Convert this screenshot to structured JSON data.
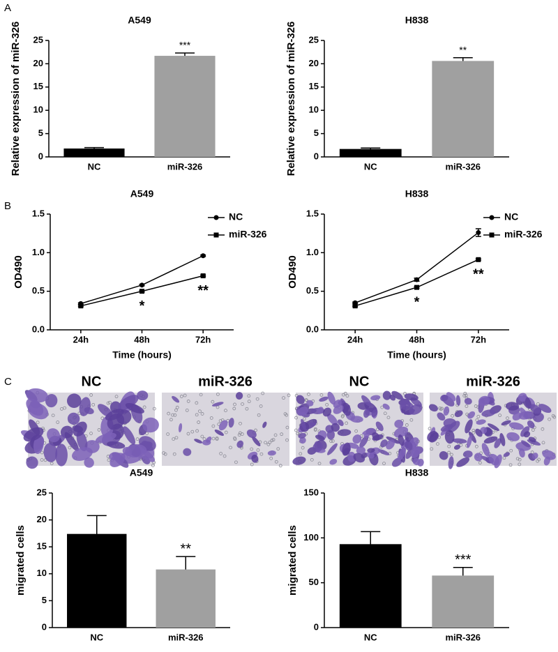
{
  "panel_labels": [
    "A",
    "B",
    "C"
  ],
  "image_titles": [
    "NC",
    "miR-326",
    "NC",
    "miR-326"
  ],
  "chart_data": [
    {
      "type": "bar",
      "title": "A549",
      "ylabel": "Relative expression of miR-326",
      "categories": [
        "NC",
        "miR-326"
      ],
      "values": [
        1.8,
        21.7
      ],
      "errors": [
        0.2,
        0.6
      ],
      "colors": [
        "#000000",
        "#a0a0a0"
      ],
      "ylim": [
        0,
        25
      ],
      "yticks": [
        0,
        5,
        10,
        15,
        20,
        25
      ],
      "annotations": [
        "***"
      ]
    },
    {
      "type": "bar",
      "title": "H838",
      "ylabel": "Relative expression of miR-326",
      "categories": [
        "NC",
        "miR-326"
      ],
      "values": [
        1.7,
        20.6
      ],
      "errors": [
        0.2,
        0.7
      ],
      "colors": [
        "#000000",
        "#a0a0a0"
      ],
      "ylim": [
        0,
        25
      ],
      "yticks": [
        0,
        5,
        10,
        15,
        20,
        25
      ],
      "annotations": [
        "**"
      ]
    },
    {
      "type": "line",
      "title": "A549",
      "ylabel": "OD490",
      "xlabel": "Time (hours)",
      "categories": [
        "24h",
        "48h",
        "72h"
      ],
      "series": [
        {
          "name": "NC",
          "color": "#000000",
          "marker": "circle",
          "values": [
            0.34,
            0.58,
            0.96
          ],
          "errors": [
            0.01,
            0.01,
            0.01
          ]
        },
        {
          "name": "miR-326",
          "color": "#000000",
          "marker": "square",
          "values": [
            0.31,
            0.5,
            0.7
          ],
          "errors": [
            0.01,
            0.01,
            0.01
          ]
        }
      ],
      "ylim": [
        0,
        1.5
      ],
      "yticks": [
        {
          "value": 0,
          "label": "0.0"
        },
        0.5,
        {
          "value": 1,
          "label": "1.0"
        },
        1.5
      ],
      "annotations": [
        "*",
        "**"
      ],
      "legend": "upper right"
    },
    {
      "type": "line",
      "title": "H838",
      "ylabel": "OD490",
      "xlabel": "Time (hours)",
      "categories": [
        "24h",
        "48h",
        "72h"
      ],
      "series": [
        {
          "name": "NC",
          "color": "#000000",
          "marker": "circle",
          "values": [
            0.35,
            0.65,
            1.26
          ],
          "errors": [
            0.01,
            0.02,
            0.05
          ]
        },
        {
          "name": "miR-326",
          "color": "#000000",
          "marker": "square",
          "values": [
            0.31,
            0.55,
            0.91
          ],
          "errors": [
            0.01,
            0.01,
            0.01
          ]
        }
      ],
      "ylim": [
        0,
        1.5
      ],
      "yticks": [
        {
          "value": 0,
          "label": "0.0"
        },
        0.5,
        {
          "value": 1,
          "label": "1.0"
        },
        1.5
      ],
      "annotations": [
        "*",
        "**"
      ],
      "legend": "upper right"
    },
    {
      "type": "bar",
      "title": "A549",
      "ylabel": "migrated cells",
      "categories": [
        "NC",
        "miR-326"
      ],
      "values": [
        17.4,
        10.8
      ],
      "errors": [
        3.4,
        2.4
      ],
      "colors": [
        "#000000",
        "#a0a0a0"
      ],
      "ylim": [
        0,
        25
      ],
      "yticks": [
        0,
        5,
        10,
        15,
        20,
        25
      ],
      "annotations": [
        "**"
      ]
    },
    {
      "type": "bar",
      "title": "H838",
      "ylabel": "migrated cells",
      "categories": [
        "NC",
        "miR-326"
      ],
      "values": [
        93,
        58
      ],
      "errors": [
        14,
        9
      ],
      "colors": [
        "#000000",
        "#a0a0a0"
      ],
      "ylim": [
        0,
        150
      ],
      "yticks": [
        0,
        50,
        100,
        150
      ],
      "annotations": [
        "***"
      ]
    }
  ]
}
